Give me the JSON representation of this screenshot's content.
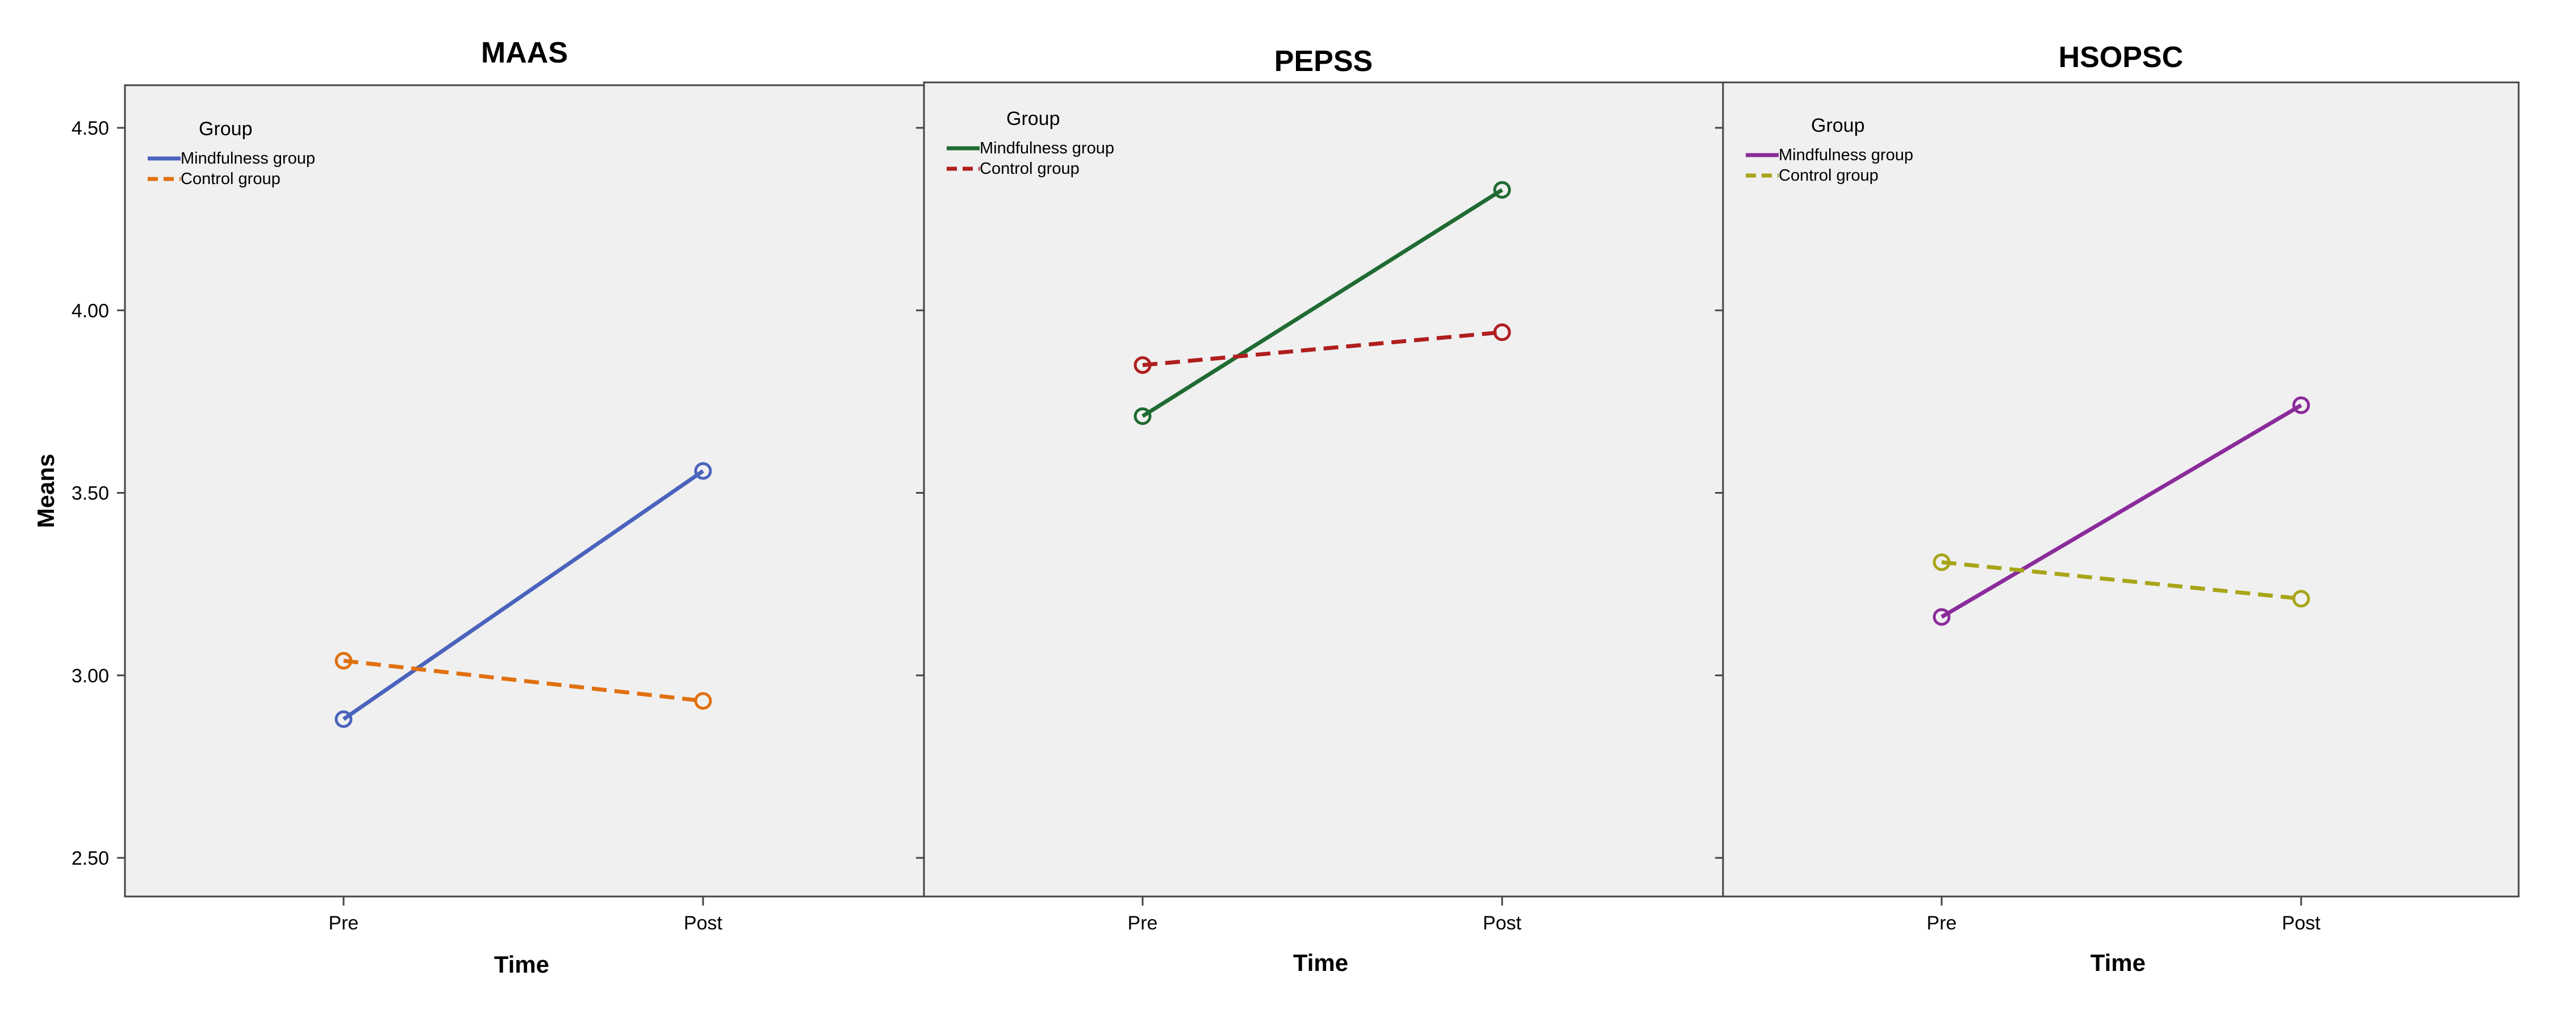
{
  "chart_data": [
    {
      "type": "line",
      "title": "MAAS",
      "xlabel": "Time",
      "ylabel": "Means",
      "categories": [
        "Pre",
        "Post"
      ],
      "ylim": [
        2.45,
        4.57
      ],
      "yticks": [
        "2.50",
        "3.00",
        "3.50",
        "4.00",
        "4.50"
      ],
      "legend": {
        "title": "Group",
        "placement": "top-left"
      },
      "series": [
        {
          "name": "Mindfulness group",
          "values": [
            2.88,
            3.56
          ],
          "color": "#4a63bd",
          "dash": "solid"
        },
        {
          "name": "Control group",
          "values": [
            3.04,
            2.93
          ],
          "color": "#e0700e",
          "dash": "dashed"
        }
      ]
    },
    {
      "type": "line",
      "title": "PEPSS",
      "xlabel": "Time",
      "ylabel": "",
      "categories": [
        "Pre",
        "Post"
      ],
      "ylim": [
        2.45,
        4.57
      ],
      "yticks": [],
      "legend": {
        "title": "Group",
        "placement": "top-left"
      },
      "series": [
        {
          "name": "Mindfulness group",
          "values": [
            3.71,
            4.33
          ],
          "color": "#1f6b32",
          "dash": "solid"
        },
        {
          "name": "Control group",
          "values": [
            3.85,
            3.94
          ],
          "color": "#b01e1e",
          "dash": "dashed"
        }
      ]
    },
    {
      "type": "line",
      "title": "HSOPSC",
      "xlabel": "Time",
      "ylabel": "",
      "categories": [
        "Pre",
        "Post"
      ],
      "ylim": [
        2.45,
        4.57
      ],
      "yticks": [],
      "legend": {
        "title": "Group",
        "placement": "top-left"
      },
      "series": [
        {
          "name": "Mindfulness group",
          "values": [
            3.16,
            3.74
          ],
          "color": "#8b2b9b",
          "dash": "solid"
        },
        {
          "name": "Control group",
          "values": [
            3.31,
            3.21
          ],
          "color": "#a8a518",
          "dash": "dashed"
        }
      ]
    }
  ]
}
